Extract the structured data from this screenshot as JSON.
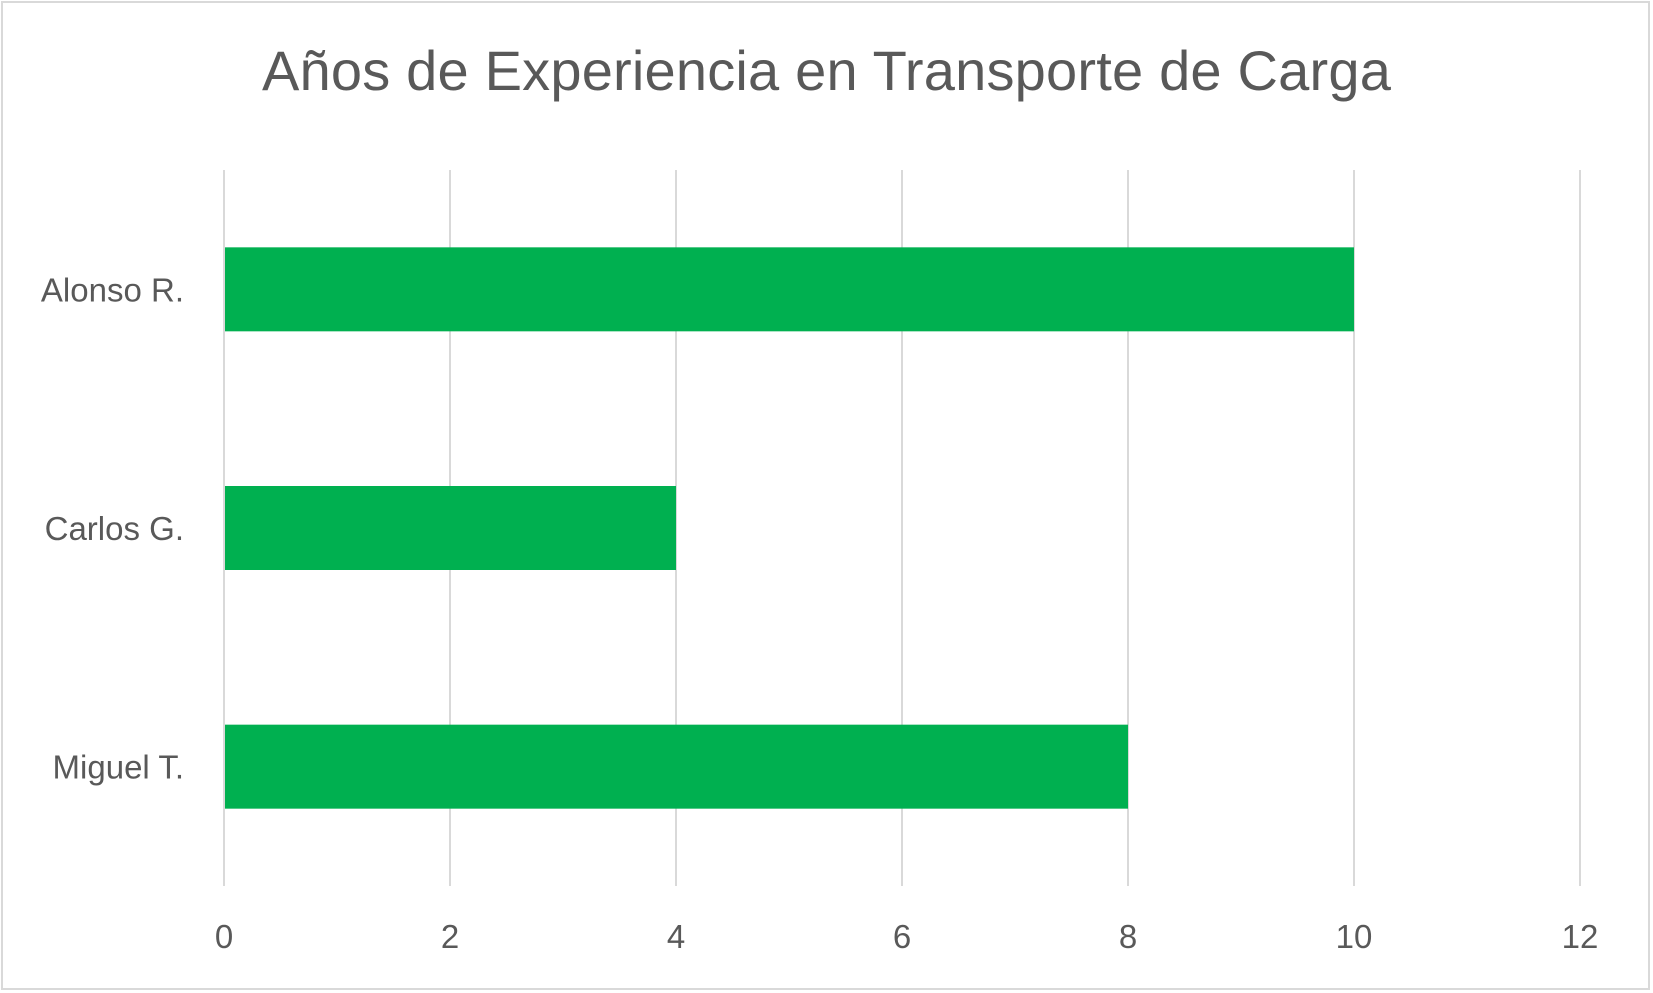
{
  "chart_data": {
    "type": "bar",
    "orientation": "horizontal",
    "title": "Años de Experiencia en Transporte de Carga",
    "categories": [
      "Alonso R.",
      "Carlos G.",
      "Miguel T."
    ],
    "values": [
      10,
      4,
      8
    ],
    "xlim": [
      0,
      12
    ],
    "x_ticks": [
      "0",
      "2",
      "4",
      "6",
      "8",
      "10",
      "12"
    ],
    "xlabel": "",
    "ylabel": "",
    "grid": "vertical",
    "legend": "none",
    "colors": {
      "bar": "#00b050",
      "grid": "#d9d9d9",
      "text": "#595959",
      "border": "#d9d9d9"
    }
  }
}
